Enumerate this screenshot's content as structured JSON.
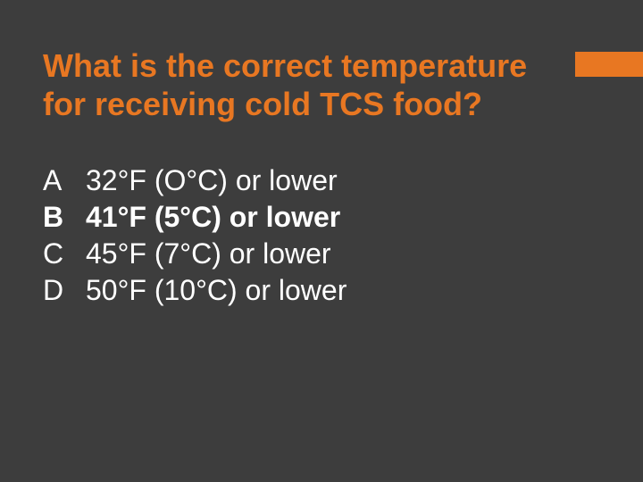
{
  "slide": {
    "accent_color": "#e87722",
    "background_color": "#3d3d3d",
    "text_color": "#ffffff",
    "question": "What is the correct temperature for receiving cold TCS food?",
    "question_fontsize": 36,
    "answer_fontsize": 32,
    "answers": [
      {
        "letter": "A",
        "text": "32°F (O°C) or lower",
        "bold": false
      },
      {
        "letter": "B",
        "text": "41°F (5°C) or lower",
        "bold": true
      },
      {
        "letter": "C",
        "text": "45°F (7°C) or lower",
        "bold": false
      },
      {
        "letter": "D",
        "text": "50°F (10°C) or lower",
        "bold": false
      }
    ]
  }
}
